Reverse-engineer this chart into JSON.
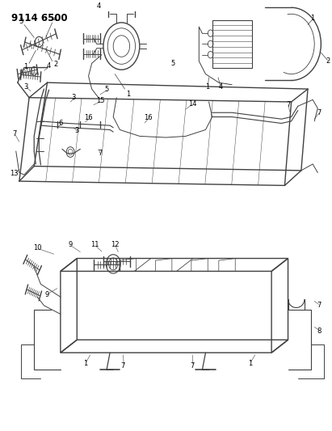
{
  "title": "9114 6500",
  "bg_color": "#ffffff",
  "line_color": "#404040",
  "label_fontsize": 6.0,
  "fig_width": 4.11,
  "fig_height": 5.33
}
